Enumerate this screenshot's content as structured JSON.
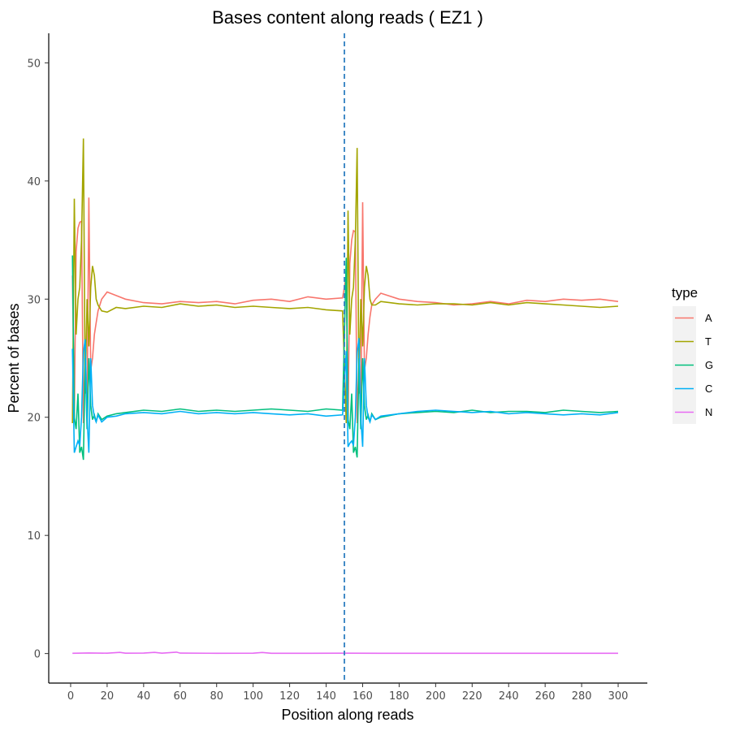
{
  "chart_data": {
    "type": "line",
    "title": "Bases content along reads ( EZ1 )",
    "xlabel": "Position along reads",
    "ylabel": "Percent of bases",
    "xlim": [
      -12,
      316
    ],
    "ylim": [
      -2.5,
      52.5
    ],
    "x_ticks": [
      0,
      20,
      40,
      60,
      80,
      100,
      120,
      140,
      160,
      180,
      200,
      220,
      240,
      260,
      280,
      300
    ],
    "y_ticks": [
      0,
      10,
      20,
      30,
      40,
      50
    ],
    "grid": false,
    "legend": {
      "title": "type",
      "placement": "right"
    },
    "vline": {
      "x": 150,
      "style": "dashed",
      "color": "#2f7fc1"
    },
    "series": [
      {
        "name": "A",
        "color": "#F8766D",
        "points": [
          [
            1,
            32
          ],
          [
            2,
            20
          ],
          [
            3,
            34
          ],
          [
            4,
            36
          ],
          [
            5,
            36.5
          ],
          [
            6,
            36.6
          ],
          [
            7,
            19.5
          ],
          [
            8,
            26
          ],
          [
            9,
            20
          ],
          [
            10,
            38.6
          ],
          [
            11,
            24
          ],
          [
            12,
            25
          ],
          [
            13,
            27
          ],
          [
            14,
            28
          ],
          [
            15,
            29
          ],
          [
            17,
            30
          ],
          [
            20,
            30.6
          ],
          [
            25,
            30.3
          ],
          [
            30,
            30
          ],
          [
            40,
            29.7
          ],
          [
            50,
            29.6
          ],
          [
            60,
            29.8
          ],
          [
            70,
            29.7
          ],
          [
            80,
            29.8
          ],
          [
            90,
            29.6
          ],
          [
            100,
            29.9
          ],
          [
            110,
            30
          ],
          [
            120,
            29.8
          ],
          [
            130,
            30.2
          ],
          [
            140,
            30
          ],
          [
            149,
            30.1
          ],
          [
            151,
            32
          ],
          [
            152,
            19.5
          ],
          [
            153,
            33
          ],
          [
            154,
            35
          ],
          [
            155,
            35.8
          ],
          [
            156,
            35.7
          ],
          [
            157,
            19.5
          ],
          [
            158,
            25
          ],
          [
            159,
            20
          ],
          [
            160,
            38.2
          ],
          [
            161,
            24
          ],
          [
            162,
            25
          ],
          [
            163,
            27
          ],
          [
            164,
            28.5
          ],
          [
            165,
            29.5
          ],
          [
            167,
            30
          ],
          [
            170,
            30.5
          ],
          [
            180,
            30
          ],
          [
            190,
            29.8
          ],
          [
            200,
            29.7
          ],
          [
            210,
            29.5
          ],
          [
            220,
            29.6
          ],
          [
            230,
            29.8
          ],
          [
            240,
            29.6
          ],
          [
            250,
            29.9
          ],
          [
            260,
            29.8
          ],
          [
            270,
            30
          ],
          [
            280,
            29.9
          ],
          [
            290,
            30
          ],
          [
            300,
            29.8
          ]
        ]
      },
      {
        "name": "T",
        "color": "#A3A500",
        "points": [
          [
            1,
            19.5
          ],
          [
            2,
            38.5
          ],
          [
            3,
            27
          ],
          [
            4,
            30
          ],
          [
            5,
            31
          ],
          [
            6,
            35
          ],
          [
            7,
            43.6
          ],
          [
            8,
            22
          ],
          [
            9,
            30
          ],
          [
            10,
            26
          ],
          [
            11,
            31
          ],
          [
            12,
            32.8
          ],
          [
            13,
            32
          ],
          [
            14,
            30
          ],
          [
            15,
            29.5
          ],
          [
            17,
            29
          ],
          [
            20,
            28.9
          ],
          [
            25,
            29.3
          ],
          [
            30,
            29.2
          ],
          [
            40,
            29.4
          ],
          [
            50,
            29.3
          ],
          [
            60,
            29.6
          ],
          [
            70,
            29.4
          ],
          [
            80,
            29.5
          ],
          [
            90,
            29.3
          ],
          [
            100,
            29.4
          ],
          [
            110,
            29.3
          ],
          [
            120,
            29.2
          ],
          [
            130,
            29.3
          ],
          [
            140,
            29.1
          ],
          [
            149,
            29
          ],
          [
            151,
            19.5
          ],
          [
            152,
            37.5
          ],
          [
            153,
            27
          ],
          [
            154,
            30
          ],
          [
            155,
            31
          ],
          [
            156,
            35
          ],
          [
            157,
            42.8
          ],
          [
            158,
            22
          ],
          [
            159,
            30
          ],
          [
            160,
            26
          ],
          [
            161,
            31
          ],
          [
            162,
            32.8
          ],
          [
            163,
            32
          ],
          [
            164,
            30
          ],
          [
            165,
            29.5
          ],
          [
            167,
            29.5
          ],
          [
            170,
            29.8
          ],
          [
            180,
            29.6
          ],
          [
            190,
            29.5
          ],
          [
            200,
            29.6
          ],
          [
            210,
            29.6
          ],
          [
            220,
            29.5
          ],
          [
            230,
            29.7
          ],
          [
            240,
            29.5
          ],
          [
            250,
            29.7
          ],
          [
            260,
            29.6
          ],
          [
            270,
            29.5
          ],
          [
            280,
            29.4
          ],
          [
            290,
            29.3
          ],
          [
            300,
            29.4
          ]
        ]
      },
      {
        "name": "G",
        "color": "#00BF7D",
        "points": [
          [
            1,
            33.7
          ],
          [
            2,
            20
          ],
          [
            3,
            19
          ],
          [
            4,
            22
          ],
          [
            5,
            17
          ],
          [
            6,
            17.5
          ],
          [
            7,
            16.4
          ],
          [
            8,
            25
          ],
          [
            9,
            19
          ],
          [
            10,
            25
          ],
          [
            11,
            21
          ],
          [
            12,
            19.8
          ],
          [
            13,
            20.2
          ],
          [
            14,
            19.6
          ],
          [
            15,
            20.3
          ],
          [
            17,
            19.8
          ],
          [
            20,
            20.1
          ],
          [
            25,
            20.3
          ],
          [
            30,
            20.4
          ],
          [
            40,
            20.6
          ],
          [
            50,
            20.5
          ],
          [
            60,
            20.7
          ],
          [
            70,
            20.5
          ],
          [
            80,
            20.6
          ],
          [
            90,
            20.5
          ],
          [
            100,
            20.6
          ],
          [
            110,
            20.7
          ],
          [
            120,
            20.6
          ],
          [
            130,
            20.5
          ],
          [
            140,
            20.7
          ],
          [
            149,
            20.6
          ],
          [
            151,
            33.5
          ],
          [
            152,
            19.8
          ],
          [
            153,
            19
          ],
          [
            154,
            22
          ],
          [
            155,
            17
          ],
          [
            156,
            17.5
          ],
          [
            157,
            16.6
          ],
          [
            158,
            25
          ],
          [
            159,
            19
          ],
          [
            160,
            25
          ],
          [
            161,
            21
          ],
          [
            162,
            19.8
          ],
          [
            163,
            20.2
          ],
          [
            164,
            19.6
          ],
          [
            165,
            20.3
          ],
          [
            167,
            19.8
          ],
          [
            170,
            20
          ],
          [
            180,
            20.3
          ],
          [
            190,
            20.4
          ],
          [
            200,
            20.5
          ],
          [
            210,
            20.4
          ],
          [
            220,
            20.6
          ],
          [
            230,
            20.4
          ],
          [
            240,
            20.5
          ],
          [
            250,
            20.5
          ],
          [
            260,
            20.4
          ],
          [
            270,
            20.6
          ],
          [
            280,
            20.5
          ],
          [
            290,
            20.4
          ],
          [
            300,
            20.5
          ]
        ]
      },
      {
        "name": "C",
        "color": "#00B0F6",
        "points": [
          [
            1,
            25.8
          ],
          [
            2,
            17
          ],
          [
            3,
            17.5
          ],
          [
            4,
            18
          ],
          [
            5,
            17.6
          ],
          [
            6,
            20
          ],
          [
            7,
            25.5
          ],
          [
            8,
            26.6
          ],
          [
            9,
            20
          ],
          [
            10,
            17
          ],
          [
            11,
            25
          ],
          [
            12,
            21
          ],
          [
            13,
            20
          ],
          [
            14,
            19.6
          ],
          [
            15,
            20.2
          ],
          [
            17,
            19.6
          ],
          [
            20,
            20
          ],
          [
            25,
            20.1
          ],
          [
            30,
            20.3
          ],
          [
            40,
            20.4
          ],
          [
            50,
            20.3
          ],
          [
            60,
            20.5
          ],
          [
            70,
            20.3
          ],
          [
            80,
            20.4
          ],
          [
            90,
            20.3
          ],
          [
            100,
            20.4
          ],
          [
            110,
            20.3
          ],
          [
            120,
            20.2
          ],
          [
            130,
            20.3
          ],
          [
            140,
            20.1
          ],
          [
            149,
            20.2
          ],
          [
            151,
            25.6
          ],
          [
            152,
            17.5
          ],
          [
            153,
            17.8
          ],
          [
            154,
            18
          ],
          [
            155,
            17.6
          ],
          [
            156,
            20
          ],
          [
            157,
            25.5
          ],
          [
            158,
            26.7
          ],
          [
            159,
            20
          ],
          [
            160,
            17.5
          ],
          [
            161,
            25
          ],
          [
            162,
            21
          ],
          [
            163,
            20
          ],
          [
            164,
            19.6
          ],
          [
            165,
            20.2
          ],
          [
            167,
            19.8
          ],
          [
            170,
            20.1
          ],
          [
            180,
            20.3
          ],
          [
            190,
            20.5
          ],
          [
            200,
            20.6
          ],
          [
            210,
            20.5
          ],
          [
            220,
            20.4
          ],
          [
            230,
            20.5
          ],
          [
            240,
            20.3
          ],
          [
            250,
            20.4
          ],
          [
            260,
            20.3
          ],
          [
            270,
            20.2
          ],
          [
            280,
            20.3
          ],
          [
            290,
            20.2
          ],
          [
            300,
            20.4
          ]
        ]
      },
      {
        "name": "N",
        "color": "#E76BF3",
        "points": [
          [
            1,
            0.02
          ],
          [
            10,
            0.05
          ],
          [
            20,
            0.03
          ],
          [
            27,
            0.1
          ],
          [
            30,
            0.03
          ],
          [
            40,
            0.04
          ],
          [
            46,
            0.1
          ],
          [
            50,
            0.03
          ],
          [
            58,
            0.12
          ],
          [
            60,
            0.04
          ],
          [
            80,
            0.02
          ],
          [
            100,
            0.03
          ],
          [
            105,
            0.09
          ],
          [
            110,
            0.02
          ],
          [
            130,
            0.02
          ],
          [
            150,
            0.03
          ],
          [
            170,
            0.02
          ],
          [
            200,
            0.02
          ],
          [
            230,
            0.02
          ],
          [
            260,
            0.02
          ],
          [
            300,
            0.02
          ]
        ]
      }
    ]
  }
}
